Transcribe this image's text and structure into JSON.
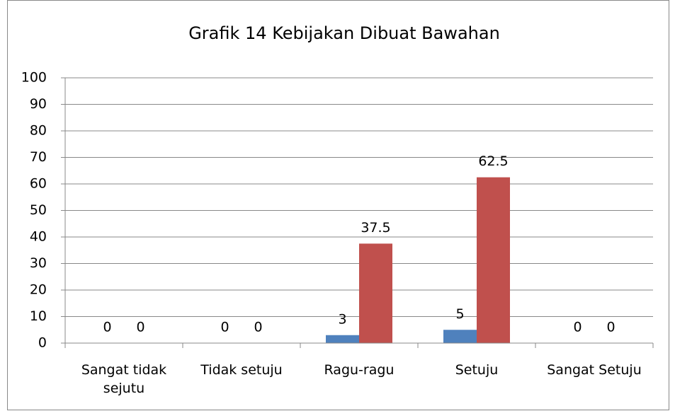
{
  "chart_data": {
    "type": "bar",
    "title": "Grafik 14 Kebijakan Dibuat Bawahan",
    "categories": [
      "Sangat tidak sejutu",
      "Tidak setuju",
      "Ragu-ragu",
      "Setuju",
      "Sangat Setuju"
    ],
    "series": [
      {
        "color": "#4f81bd",
        "values": [
          0,
          0,
          3,
          5,
          0
        ]
      },
      {
        "color": "#c0504d",
        "values": [
          0,
          0,
          37.5,
          62.5,
          0
        ]
      }
    ],
    "ylim": [
      0,
      100
    ],
    "yticks": [
      0,
      10,
      20,
      30,
      40,
      50,
      60,
      70,
      80,
      90,
      100
    ],
    "grid": true
  }
}
